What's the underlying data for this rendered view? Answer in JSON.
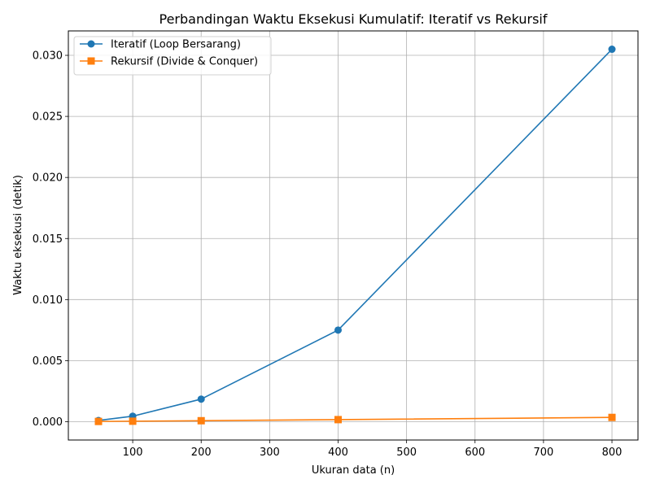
{
  "chart_data": {
    "type": "line",
    "title": "Perbandingan Waktu Eksekusi Kumulatif: Iteratif vs Rekursif",
    "xlabel": "Ukuran data (n)",
    "ylabel": "Waktu eksekusi (detik)",
    "x": [
      50,
      100,
      200,
      400,
      800
    ],
    "xlim": [
      6,
      838
    ],
    "ylim": [
      -0.0015,
      0.032
    ],
    "xticks": [
      100,
      200,
      300,
      400,
      500,
      600,
      700,
      800
    ],
    "xtick_labels": [
      "100",
      "200",
      "300",
      "400",
      "500",
      "600",
      "700",
      "800"
    ],
    "yticks": [
      0.0,
      0.005,
      0.01,
      0.015,
      0.02,
      0.025,
      0.03
    ],
    "ytick_labels": [
      "0.000",
      "0.005",
      "0.010",
      "0.015",
      "0.020",
      "0.025",
      "0.030"
    ],
    "grid": true,
    "legend_position": "top-left",
    "series": [
      {
        "name": "Iteratif (Loop Bersarang)",
        "color": "#1f77b4",
        "marker": "circle",
        "values": [
          0.0001,
          0.00045,
          0.00185,
          0.0075,
          0.0305
        ]
      },
      {
        "name": "Rekursif (Divide & Conquer)",
        "color": "#ff7f0e",
        "marker": "square",
        "values": [
          2e-05,
          4e-05,
          8e-05,
          0.00017,
          0.00035
        ]
      }
    ]
  }
}
